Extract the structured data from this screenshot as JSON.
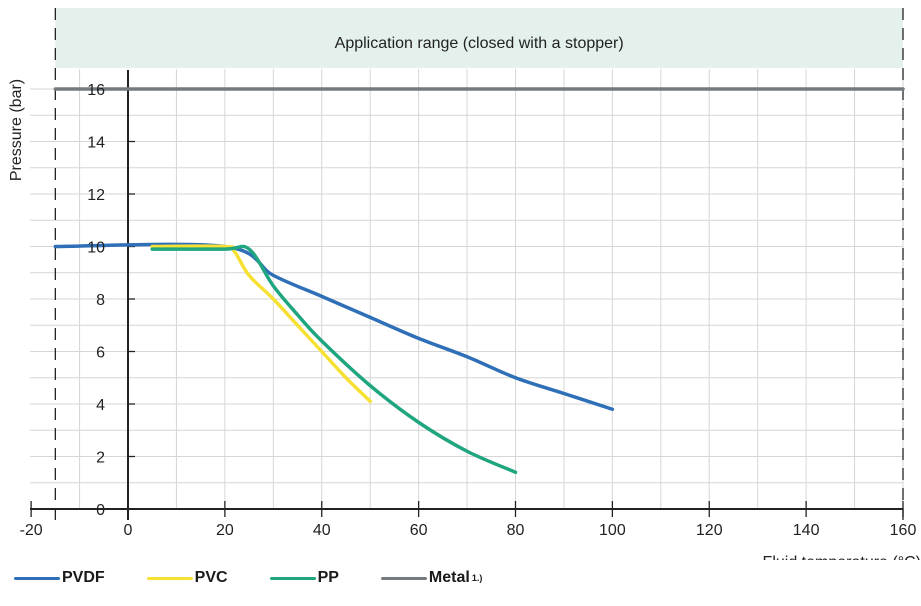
{
  "chart_data": {
    "type": "line",
    "xlabel": "Fluid temperature (°C)",
    "ylabel": "Pressure (bar)",
    "xlim": [
      -20,
      160
    ],
    "ylim": [
      0,
      16
    ],
    "x_ticks": [
      -20,
      0,
      20,
      40,
      60,
      80,
      100,
      120,
      140,
      160
    ],
    "y_ticks": [
      0,
      2,
      4,
      6,
      8,
      10,
      12,
      14,
      16
    ],
    "grid": true,
    "legend_position": "bottom-left",
    "application_range": {
      "label": "Application range (closed with a stopper)",
      "x_from": -15,
      "x_to": 160
    },
    "series": [
      {
        "name": "PVDF",
        "color": "#2e6fb7",
        "x": [
          -15,
          20,
          30,
          40,
          50,
          60,
          70,
          80,
          90,
          100
        ],
        "y": [
          10,
          10,
          8.9,
          8.1,
          7.3,
          6.5,
          5.8,
          5.0,
          4.4,
          3.8
        ]
      },
      {
        "name": "PVC",
        "color": "#f7e034",
        "x": [
          5,
          20,
          22,
          25,
          30,
          35,
          40,
          45,
          50
        ],
        "y": [
          10,
          10,
          9.8,
          8.9,
          8.0,
          7.0,
          6.0,
          5.0,
          4.1
        ]
      },
      {
        "name": "PP",
        "color": "#1fa57f",
        "x": [
          5,
          20,
          25,
          30,
          35,
          40,
          50,
          60,
          70,
          80
        ],
        "y": [
          9.9,
          9.9,
          9.9,
          8.5,
          7.4,
          6.4,
          4.7,
          3.3,
          2.2,
          1.4
        ]
      },
      {
        "name": "Metal",
        "superscript": "1.)",
        "color": "#737b80",
        "x": [
          -15,
          160
        ],
        "y": [
          16,
          16
        ]
      }
    ]
  }
}
